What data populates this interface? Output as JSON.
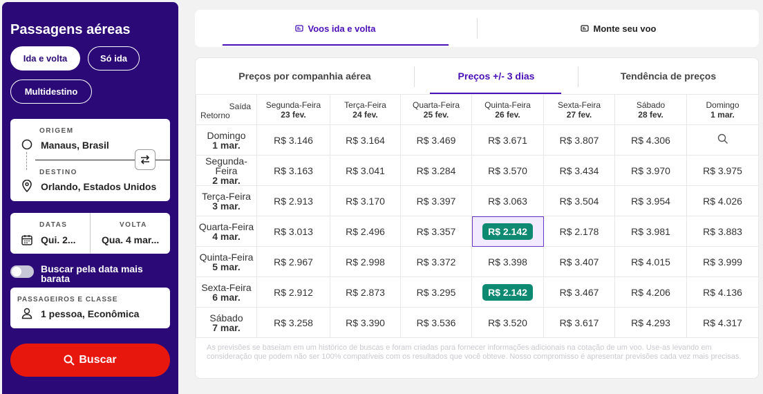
{
  "sidebar": {
    "title": "Passagens aéreas",
    "trip_types": [
      "Ida e volta",
      "Só ida",
      "Multidestino"
    ],
    "origin_label": "ORIGEM",
    "origin_value": "Manaus, Brasil",
    "destination_label": "DESTINO",
    "destination_value": "Orlando, Estados Unidos",
    "dates_label": "DATAS",
    "dates_value": "Qui. 2...",
    "return_label": "VOLTA",
    "return_value": "Qua. 4 mar...",
    "cheapest_toggle_label": "Buscar pela data mais barata",
    "passengers_label": "PASSAGEIROS E CLASSE",
    "passengers_value": "1 pessoa, Econômica",
    "search_label": "Buscar"
  },
  "top_tabs": [
    "Voos ida e volta",
    "Monte seu voo"
  ],
  "panel_tabs": [
    "Preços por companhia aérea",
    "Preços +/- 3 dias",
    "Tendência de preços"
  ],
  "grid": {
    "corner_depart": "Saída",
    "corner_return": "Retorno",
    "columns": [
      {
        "day": "Segunda-Feira",
        "date": "23 fev."
      },
      {
        "day": "Terça-Feira",
        "date": "24 fev."
      },
      {
        "day": "Quarta-Feira",
        "date": "25 fev."
      },
      {
        "day": "Quinta-Feira",
        "date": "26 fev."
      },
      {
        "day": "Sexta-Feira",
        "date": "27 fev."
      },
      {
        "day": "Sábado",
        "date": "28 fev."
      },
      {
        "day": "Domingo",
        "date": "1 mar."
      }
    ],
    "rows": [
      {
        "day": "Domingo",
        "date": "1 mar.",
        "prices": [
          "R$ 3.146",
          "R$ 3.164",
          "R$ 3.469",
          "R$ 3.671",
          "R$ 3.807",
          "R$ 4.306",
          ""
        ]
      },
      {
        "day": "Segunda-Feira",
        "date": "2 mar.",
        "prices": [
          "R$ 3.163",
          "R$ 3.041",
          "R$ 3.284",
          "R$ 3.570",
          "R$ 3.434",
          "R$ 3.970",
          "R$ 3.975"
        ]
      },
      {
        "day": "Terça-Feira",
        "date": "3 mar.",
        "prices": [
          "R$ 2.913",
          "R$ 3.170",
          "R$ 3.397",
          "R$ 3.063",
          "R$ 3.504",
          "R$ 3.954",
          "R$ 4.026"
        ]
      },
      {
        "day": "Quarta-Feira",
        "date": "4 mar.",
        "prices": [
          "R$ 3.013",
          "R$ 2.496",
          "R$ 3.357",
          "R$ 2.142",
          "R$ 2.178",
          "R$ 3.981",
          "R$ 3.883"
        ]
      },
      {
        "day": "Quinta-Feira",
        "date": "5 mar.",
        "prices": [
          "R$ 2.967",
          "R$ 2.998",
          "R$ 3.372",
          "R$ 3.398",
          "R$ 3.407",
          "R$ 4.015",
          "R$ 3.999"
        ]
      },
      {
        "day": "Sexta-Feira",
        "date": "6 mar.",
        "prices": [
          "R$ 2.912",
          "R$ 2.873",
          "R$ 3.295",
          "R$ 2.142",
          "R$ 3.467",
          "R$ 4.206",
          "R$ 4.136"
        ]
      },
      {
        "day": "Sábado",
        "date": "7 mar.",
        "prices": [
          "R$ 3.258",
          "R$ 3.390",
          "R$ 3.536",
          "R$ 3.520",
          "R$ 3.617",
          "R$ 4.293",
          "R$ 4.317"
        ]
      }
    ],
    "highlight_cells": [
      [
        3,
        3
      ],
      [
        5,
        3
      ]
    ],
    "selected_cell": [
      3,
      3
    ]
  },
  "disclaimer": "As previsões se baseiam em um histórico de buscas e foram criadas para fornecer informações adicionais na cotação de um voo. Use-as levando em consideração que podem não ser 100% compatíveis com os resultados que você obteve. Nosso compromisso é apresentar previsões cada vez mais precisas.",
  "colors": {
    "brand": "#2b0a78",
    "accent": "#4a0fb8",
    "search": "#e8170e",
    "best_price": "#0e8a73"
  },
  "icons": {
    "calendar_tab": "calendar-icon",
    "search": "magnifier-icon"
  }
}
